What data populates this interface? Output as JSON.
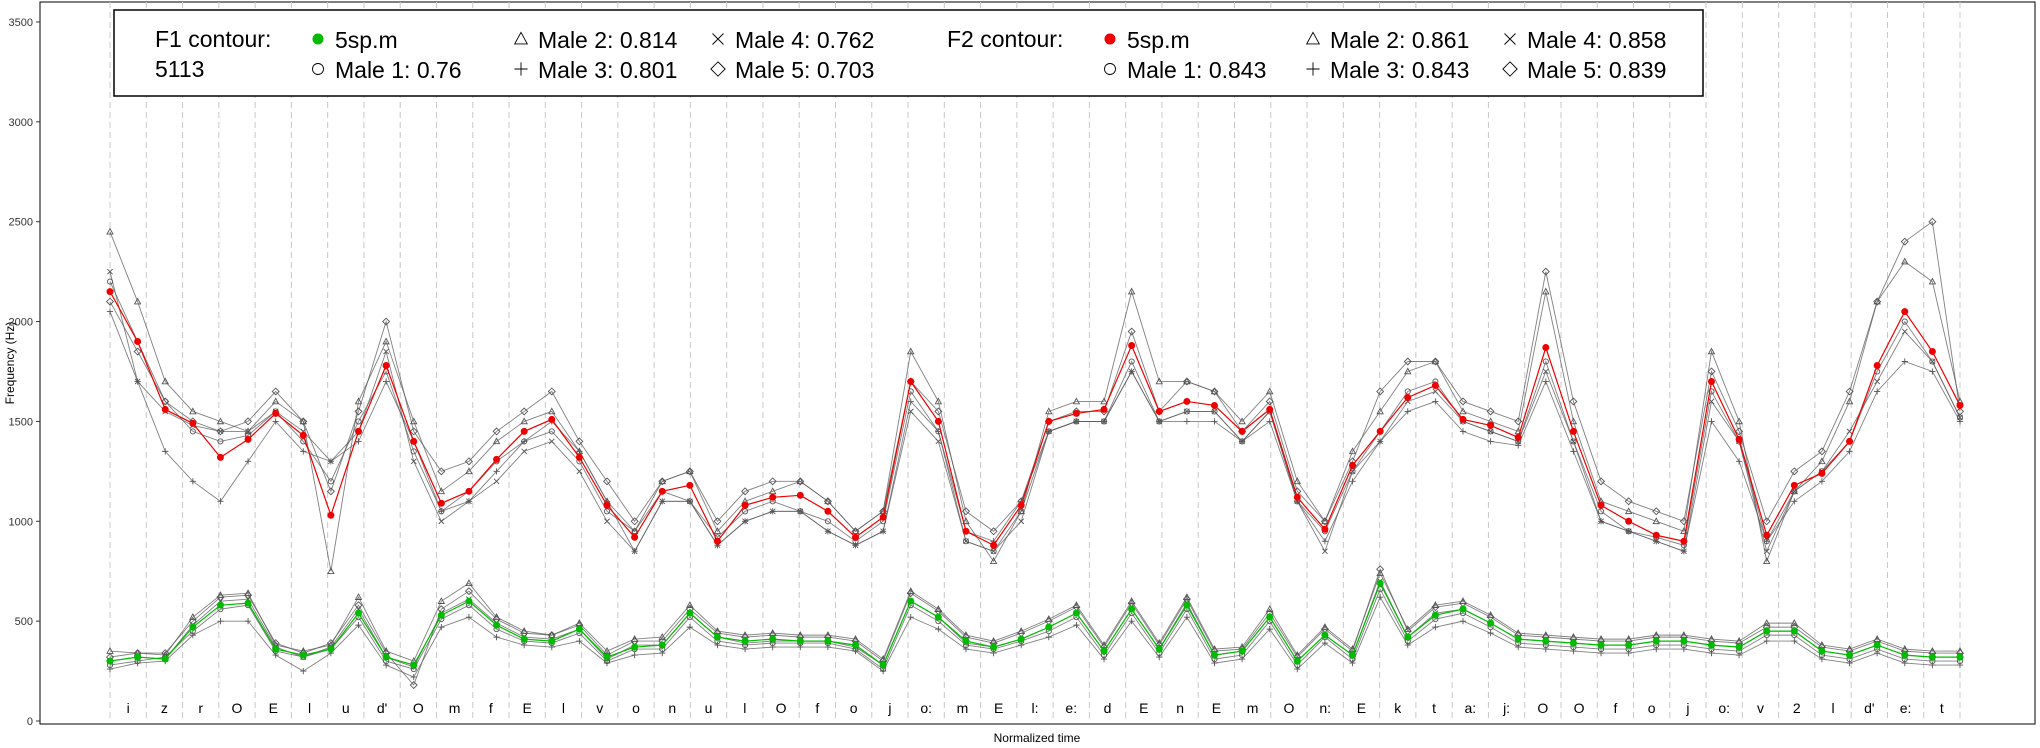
{
  "chart_data": {
    "type": "line",
    "title": "",
    "xlabel": "Normalized time",
    "ylabel": "Frequency (Hz)",
    "ylim": [
      0,
      3600
    ],
    "yticks": [
      0,
      500,
      1000,
      1500,
      2000,
      2500,
      3000,
      3500
    ],
    "grid": "vertical dashed segment boundaries",
    "segments": [
      "i",
      "z",
      "r",
      "O",
      "E",
      "l",
      "u",
      "d'",
      "O",
      "m",
      "f",
      "E",
      "l",
      "v",
      "o",
      "n",
      "u",
      "l",
      "O",
      "f",
      "o",
      "j",
      "o:",
      "m",
      "E",
      "l:",
      "e:",
      "d",
      "E",
      "n",
      "E",
      "m",
      "O",
      "n:",
      "E",
      "k",
      "t",
      "a:",
      "j:",
      "O",
      "O",
      "f",
      "o",
      "j",
      "o:",
      "v",
      "2",
      "l",
      "d'",
      "e:",
      "t"
    ],
    "legend": {
      "f1": {
        "title": "F1 contour:",
        "id": "5113",
        "entries": [
          {
            "label": "5sp.m",
            "marker": "filled-circle",
            "color": "#00bb00"
          },
          {
            "label": "Male 1: 0.76",
            "marker": "circle"
          },
          {
            "label": "Male 2: 0.814",
            "marker": "triangle"
          },
          {
            "label": "Male 3: 0.801",
            "marker": "plus"
          },
          {
            "label": "Male 4: 0.762",
            "marker": "x"
          },
          {
            "label": "Male 5: 0.703",
            "marker": "diamond"
          }
        ]
      },
      "f2": {
        "title": "F2 contour:",
        "entries": [
          {
            "label": "5sp.m",
            "marker": "filled-circle",
            "color": "#ee0000"
          },
          {
            "label": "Male 1: 0.843",
            "marker": "circle"
          },
          {
            "label": "Male 2: 0.861",
            "marker": "triangle"
          },
          {
            "label": "Male 3: 0.843",
            "marker": "plus"
          },
          {
            "label": "Male 4: 0.858",
            "marker": "x"
          },
          {
            "label": "Male 5: 0.839",
            "marker": "diamond"
          }
        ]
      }
    },
    "series": [
      {
        "name": "5sp.m",
        "formant": "F2",
        "color": "#ee0000",
        "values": [
          2150,
          1900,
          1560,
          1490,
          1320,
          1410,
          1540,
          1430,
          1030,
          1450,
          1780,
          1400,
          1090,
          1150,
          1310,
          1450,
          1510,
          1320,
          1080,
          920,
          1150,
          1180,
          900,
          1080,
          1120,
          1130,
          1050,
          920,
          1020,
          1700,
          1500,
          950,
          880,
          1080,
          1500,
          1540,
          1560,
          1880,
          1550,
          1600,
          1580,
          1450,
          1560,
          1120,
          960,
          1280,
          1450,
          1620,
          1680,
          1510,
          1480,
          1420,
          1870,
          1450,
          1080,
          1000,
          930,
          900,
          1700,
          1410,
          930,
          1180,
          1240,
          1400,
          1780,
          2050,
          1850,
          1580
        ]
      },
      {
        "name": "5sp.m",
        "formant": "F1",
        "color": "#00bb00",
        "values": [
          300,
          320,
          310,
          470,
          580,
          590,
          360,
          330,
          360,
          540,
          320,
          280,
          530,
          600,
          480,
          410,
          400,
          460,
          320,
          370,
          380,
          540,
          420,
          400,
          410,
          400,
          400,
          380,
          280,
          600,
          520,
          400,
          370,
          410,
          470,
          540,
          350,
          560,
          360,
          580,
          330,
          350,
          520,
          300,
          430,
          330,
          690,
          420,
          530,
          560,
          490,
          410,
          400,
          390,
          380,
          380,
          400,
          400,
          380,
          370,
          450,
          450,
          350,
          330,
          380,
          330,
          320,
          320
        ]
      },
      {
        "name": "Male 1: 0.76",
        "formant": "F2",
        "values": [
          2200,
          1900,
          1600,
          1450,
          1400,
          1430,
          1550,
          1400,
          1200,
          1500,
          1750,
          1350,
          1050,
          1150,
          1300,
          1400,
          1450,
          1300,
          1050,
          950,
          1150,
          1100,
          920,
          1050,
          1100,
          1050,
          1000,
          900,
          1000,
          1650,
          1450,
          900,
          850,
          1050,
          1450,
          1500,
          1500,
          1800,
          1500,
          1550,
          1550,
          1400,
          1550,
          1100,
          950,
          1250,
          1450,
          1650,
          1700,
          1500,
          1450,
          1400,
          1800,
          1400,
          1050,
          950,
          920,
          880,
          1650,
          1400,
          900,
          1150,
          1250,
          1400,
          1750,
          2000,
          1800,
          1520
        ]
      },
      {
        "name": "Male 2: 0.814",
        "formant": "F2",
        "values": [
          2450,
          2100,
          1700,
          1550,
          1500,
          1450,
          1600,
          1500,
          750,
          1600,
          1900,
          1500,
          1150,
          1250,
          1400,
          1500,
          1550,
          1350,
          1100,
          950,
          1200,
          1250,
          950,
          1100,
          1150,
          1200,
          1100,
          950,
          1050,
          1850,
          1600,
          1000,
          800,
          1050,
          1550,
          1600,
          1600,
          2150,
          1700,
          1700,
          1650,
          1500,
          1650,
          1200,
          1000,
          1350,
          1550,
          1750,
          1800,
          1550,
          1500,
          1450,
          2150,
          1500,
          1100,
          1050,
          1000,
          950,
          1850,
          1500,
          800,
          1150,
          1300,
          1600,
          2100,
          2300,
          2200,
          1600
        ]
      },
      {
        "name": "Male 3: 0.801",
        "formant": "F2",
        "values": [
          2050,
          1700,
          1350,
          1200,
          1100,
          1300,
          1500,
          1350,
          1300,
          1400,
          1700,
          1400,
          1050,
          1100,
          1250,
          1400,
          1500,
          1350,
          1100,
          850,
          1100,
          1100,
          880,
          1000,
          1050,
          1050,
          950,
          880,
          950,
          1600,
          1450,
          950,
          900,
          1100,
          1450,
          1500,
          1500,
          1750,
          1500,
          1500,
          1500,
          1400,
          1500,
          1100,
          900,
          1200,
          1400,
          1550,
          1600,
          1450,
          1400,
          1380,
          1700,
          1350,
          1000,
          950,
          900,
          850,
          1500,
          1300,
          900,
          1100,
          1200,
          1350,
          1650,
          1800,
          1750,
          1500
        ]
      },
      {
        "name": "Male 4: 0.762",
        "formant": "F2",
        "values": [
          2250,
          1700,
          1550,
          1480,
          1450,
          1450,
          1550,
          1450,
          1300,
          1450,
          1850,
          1300,
          1000,
          1100,
          1200,
          1350,
          1400,
          1250,
          1000,
          850,
          1100,
          1100,
          880,
          1000,
          1050,
          1050,
          950,
          880,
          950,
          1550,
          1400,
          900,
          850,
          1000,
          1450,
          1500,
          1500,
          1750,
          1500,
          1550,
          1550,
          1400,
          1550,
          1100,
          850,
          1250,
          1400,
          1600,
          1650,
          1500,
          1450,
          1400,
          1750,
          1400,
          1000,
          950,
          900,
          850,
          1600,
          1400,
          850,
          1150,
          1250,
          1450,
          1700,
          1950,
          1800,
          1520
        ]
      },
      {
        "name": "Male 5: 0.703",
        "formant": "F2",
        "values": [
          2100,
          1850,
          1600,
          1500,
          1450,
          1500,
          1650,
          1500,
          1150,
          1550,
          2000,
          1450,
          1250,
          1300,
          1450,
          1550,
          1650,
          1400,
          1200,
          1000,
          1200,
          1250,
          1000,
          1150,
          1200,
          1200,
          1100,
          950,
          1050,
          1700,
          1550,
          1050,
          950,
          1100,
          1500,
          1550,
          1550,
          1950,
          1550,
          1700,
          1650,
          1450,
          1600,
          1150,
          1000,
          1300,
          1650,
          1800,
          1800,
          1600,
          1550,
          1500,
          2250,
          1600,
          1200,
          1100,
          1050,
          1000,
          1750,
          1450,
          1000,
          1250,
          1350,
          1650,
          2100,
          2400,
          2500,
          1550
        ]
      },
      {
        "name": "Male 1: 0.76",
        "formant": "F1",
        "values": [
          280,
          300,
          320,
          450,
          560,
          580,
          350,
          320,
          360,
          520,
          300,
          260,
          510,
          580,
          460,
          400,
          390,
          440,
          300,
          360,
          360,
          520,
          400,
          380,
          390,
          390,
          390,
          360,
          260,
          580,
          500,
          380,
          360,
          400,
          450,
          520,
          330,
          540,
          340,
          560,
          310,
          330,
          500,
          280,
          420,
          310,
          660,
          400,
          510,
          540,
          470,
          390,
          380,
          370,
          360,
          360,
          380,
          380,
          360,
          350,
          430,
          430,
          330,
          310,
          360,
          310,
          300,
          300
        ]
      },
      {
        "name": "Male 2: 0.814",
        "formant": "F1",
        "values": [
          350,
          340,
          330,
          520,
          630,
          640,
          380,
          350,
          380,
          620,
          350,
          300,
          600,
          690,
          520,
          450,
          430,
          490,
          350,
          410,
          420,
          580,
          450,
          430,
          440,
          430,
          430,
          410,
          310,
          650,
          560,
          430,
          400,
          450,
          510,
          580,
          380,
          600,
          390,
          620,
          360,
          370,
          560,
          330,
          470,
          360,
          740,
          460,
          580,
          600,
          530,
          440,
          430,
          420,
          410,
          410,
          430,
          430,
          410,
          400,
          490,
          490,
          380,
          360,
          410,
          360,
          350,
          350
        ]
      },
      {
        "name": "Male 3: 0.801",
        "formant": "F1",
        "values": [
          260,
          290,
          300,
          430,
          500,
          500,
          330,
          250,
          340,
          480,
          280,
          220,
          470,
          520,
          420,
          380,
          370,
          400,
          290,
          330,
          340,
          470,
          380,
          360,
          370,
          370,
          370,
          350,
          250,
          520,
          460,
          360,
          340,
          380,
          420,
          480,
          310,
          500,
          320,
          520,
          290,
          310,
          460,
          260,
          390,
          290,
          620,
          380,
          470,
          500,
          440,
          370,
          360,
          350,
          340,
          340,
          360,
          360,
          340,
          330,
          400,
          400,
          310,
          290,
          340,
          290,
          280,
          280
        ]
      },
      {
        "name": "Male 4: 0.762",
        "formant": "F1",
        "values": [
          300,
          320,
          310,
          480,
          600,
          610,
          370,
          320,
          370,
          560,
          320,
          270,
          540,
          610,
          490,
          420,
          410,
          460,
          310,
          380,
          380,
          540,
          420,
          390,
          400,
          400,
          400,
          370,
          280,
          600,
          520,
          390,
          370,
          410,
          470,
          540,
          350,
          560,
          360,
          590,
          330,
          350,
          520,
          300,
          430,
          330,
          700,
          420,
          540,
          560,
          490,
          410,
          400,
          390,
          380,
          380,
          400,
          400,
          380,
          370,
          450,
          450,
          350,
          330,
          380,
          330,
          320,
          320
        ]
      },
      {
        "name": "Male 5: 0.703",
        "formant": "F1",
        "values": [
          320,
          340,
          340,
          500,
          620,
          630,
          390,
          340,
          390,
          580,
          340,
          180,
          560,
          650,
          510,
          440,
          430,
          480,
          330,
          400,
          400,
          560,
          440,
          420,
          430,
          420,
          420,
          400,
          300,
          640,
          550,
          420,
          390,
          440,
          500,
          570,
          370,
          590,
          380,
          610,
          350,
          360,
          540,
          320,
          460,
          350,
          760,
          450,
          570,
          590,
          520,
          430,
          420,
          410,
          400,
          400,
          420,
          420,
          400,
          390,
          470,
          470,
          370,
          350,
          400,
          350,
          340,
          340
        ]
      }
    ]
  }
}
